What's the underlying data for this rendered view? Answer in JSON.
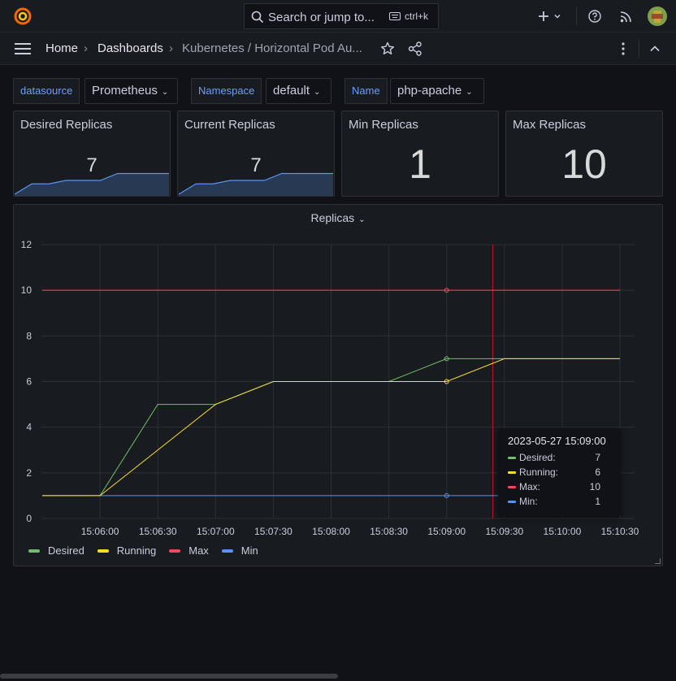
{
  "search": {
    "placeholder": "Search or jump to...",
    "shortcut": "ctrl+k"
  },
  "breadcrumb": {
    "home": "Home",
    "separator": "›",
    "dashboards": "Dashboards",
    "current": "Kubernetes / Horizontal Pod Au..."
  },
  "variables": [
    {
      "label": "datasource",
      "value": "Prometheus"
    },
    {
      "label": "Namespace",
      "value": "default"
    },
    {
      "label": "Name",
      "value": "php-apache"
    }
  ],
  "stats": [
    {
      "title": "Desired Replicas",
      "value": "7",
      "sparkline": [
        0,
        3,
        3,
        4,
        4,
        4,
        6,
        6,
        6,
        6
      ],
      "color": "#5794f2"
    },
    {
      "title": "Current Replicas",
      "value": "7",
      "sparkline": [
        0,
        3,
        3,
        4,
        4,
        4,
        6,
        6,
        6,
        6
      ],
      "color": "#5794f2"
    },
    {
      "title": "Min Replicas",
      "value": "1"
    },
    {
      "title": "Max Replicas",
      "value": "10"
    }
  ],
  "chart_data": {
    "type": "line",
    "title": "Replicas",
    "x": [
      "15:05:30",
      "15:06:00",
      "15:06:30",
      "15:07:00",
      "15:07:30",
      "15:08:00",
      "15:08:30",
      "15:09:00",
      "15:09:30",
      "15:10:00",
      "15:10:30"
    ],
    "x_ticks": [
      "15:06:00",
      "15:06:30",
      "15:07:00",
      "15:07:30",
      "15:08:00",
      "15:08:30",
      "15:09:00",
      "15:09:30",
      "15:10:00",
      "15:10:30"
    ],
    "y_ticks": [
      "0",
      "2",
      "4",
      "6",
      "8",
      "10",
      "12"
    ],
    "ylim": [
      0,
      12
    ],
    "series": [
      {
        "name": "Desired",
        "color": "#73bf69",
        "values": [
          1,
          1,
          5,
          5,
          6,
          6,
          6,
          7,
          7,
          7,
          7
        ]
      },
      {
        "name": "Running",
        "color": "#fade2a",
        "values": [
          1,
          1,
          3,
          5,
          6,
          6,
          6,
          6,
          7,
          7,
          7
        ]
      },
      {
        "name": "Max",
        "color": "#f2495c",
        "values": [
          10,
          10,
          10,
          10,
          10,
          10,
          10,
          10,
          10,
          10,
          10
        ]
      },
      {
        "name": "Min",
        "color": "#5794f2",
        "values": [
          1,
          1,
          1,
          1,
          1,
          1,
          1,
          1,
          1,
          1,
          1
        ]
      }
    ],
    "legend": "bottom-left",
    "grid": true,
    "hover_index": 7
  },
  "tooltip": {
    "time": "2023-05-27 15:09:00",
    "rows": [
      {
        "name": "Desired:",
        "value": "7",
        "color": "#73bf69"
      },
      {
        "name": "Running:",
        "value": "6",
        "color": "#fade2a"
      },
      {
        "name": "Max:",
        "value": "10",
        "color": "#f2495c"
      },
      {
        "name": "Min:",
        "value": "1",
        "color": "#5794f2"
      }
    ]
  }
}
